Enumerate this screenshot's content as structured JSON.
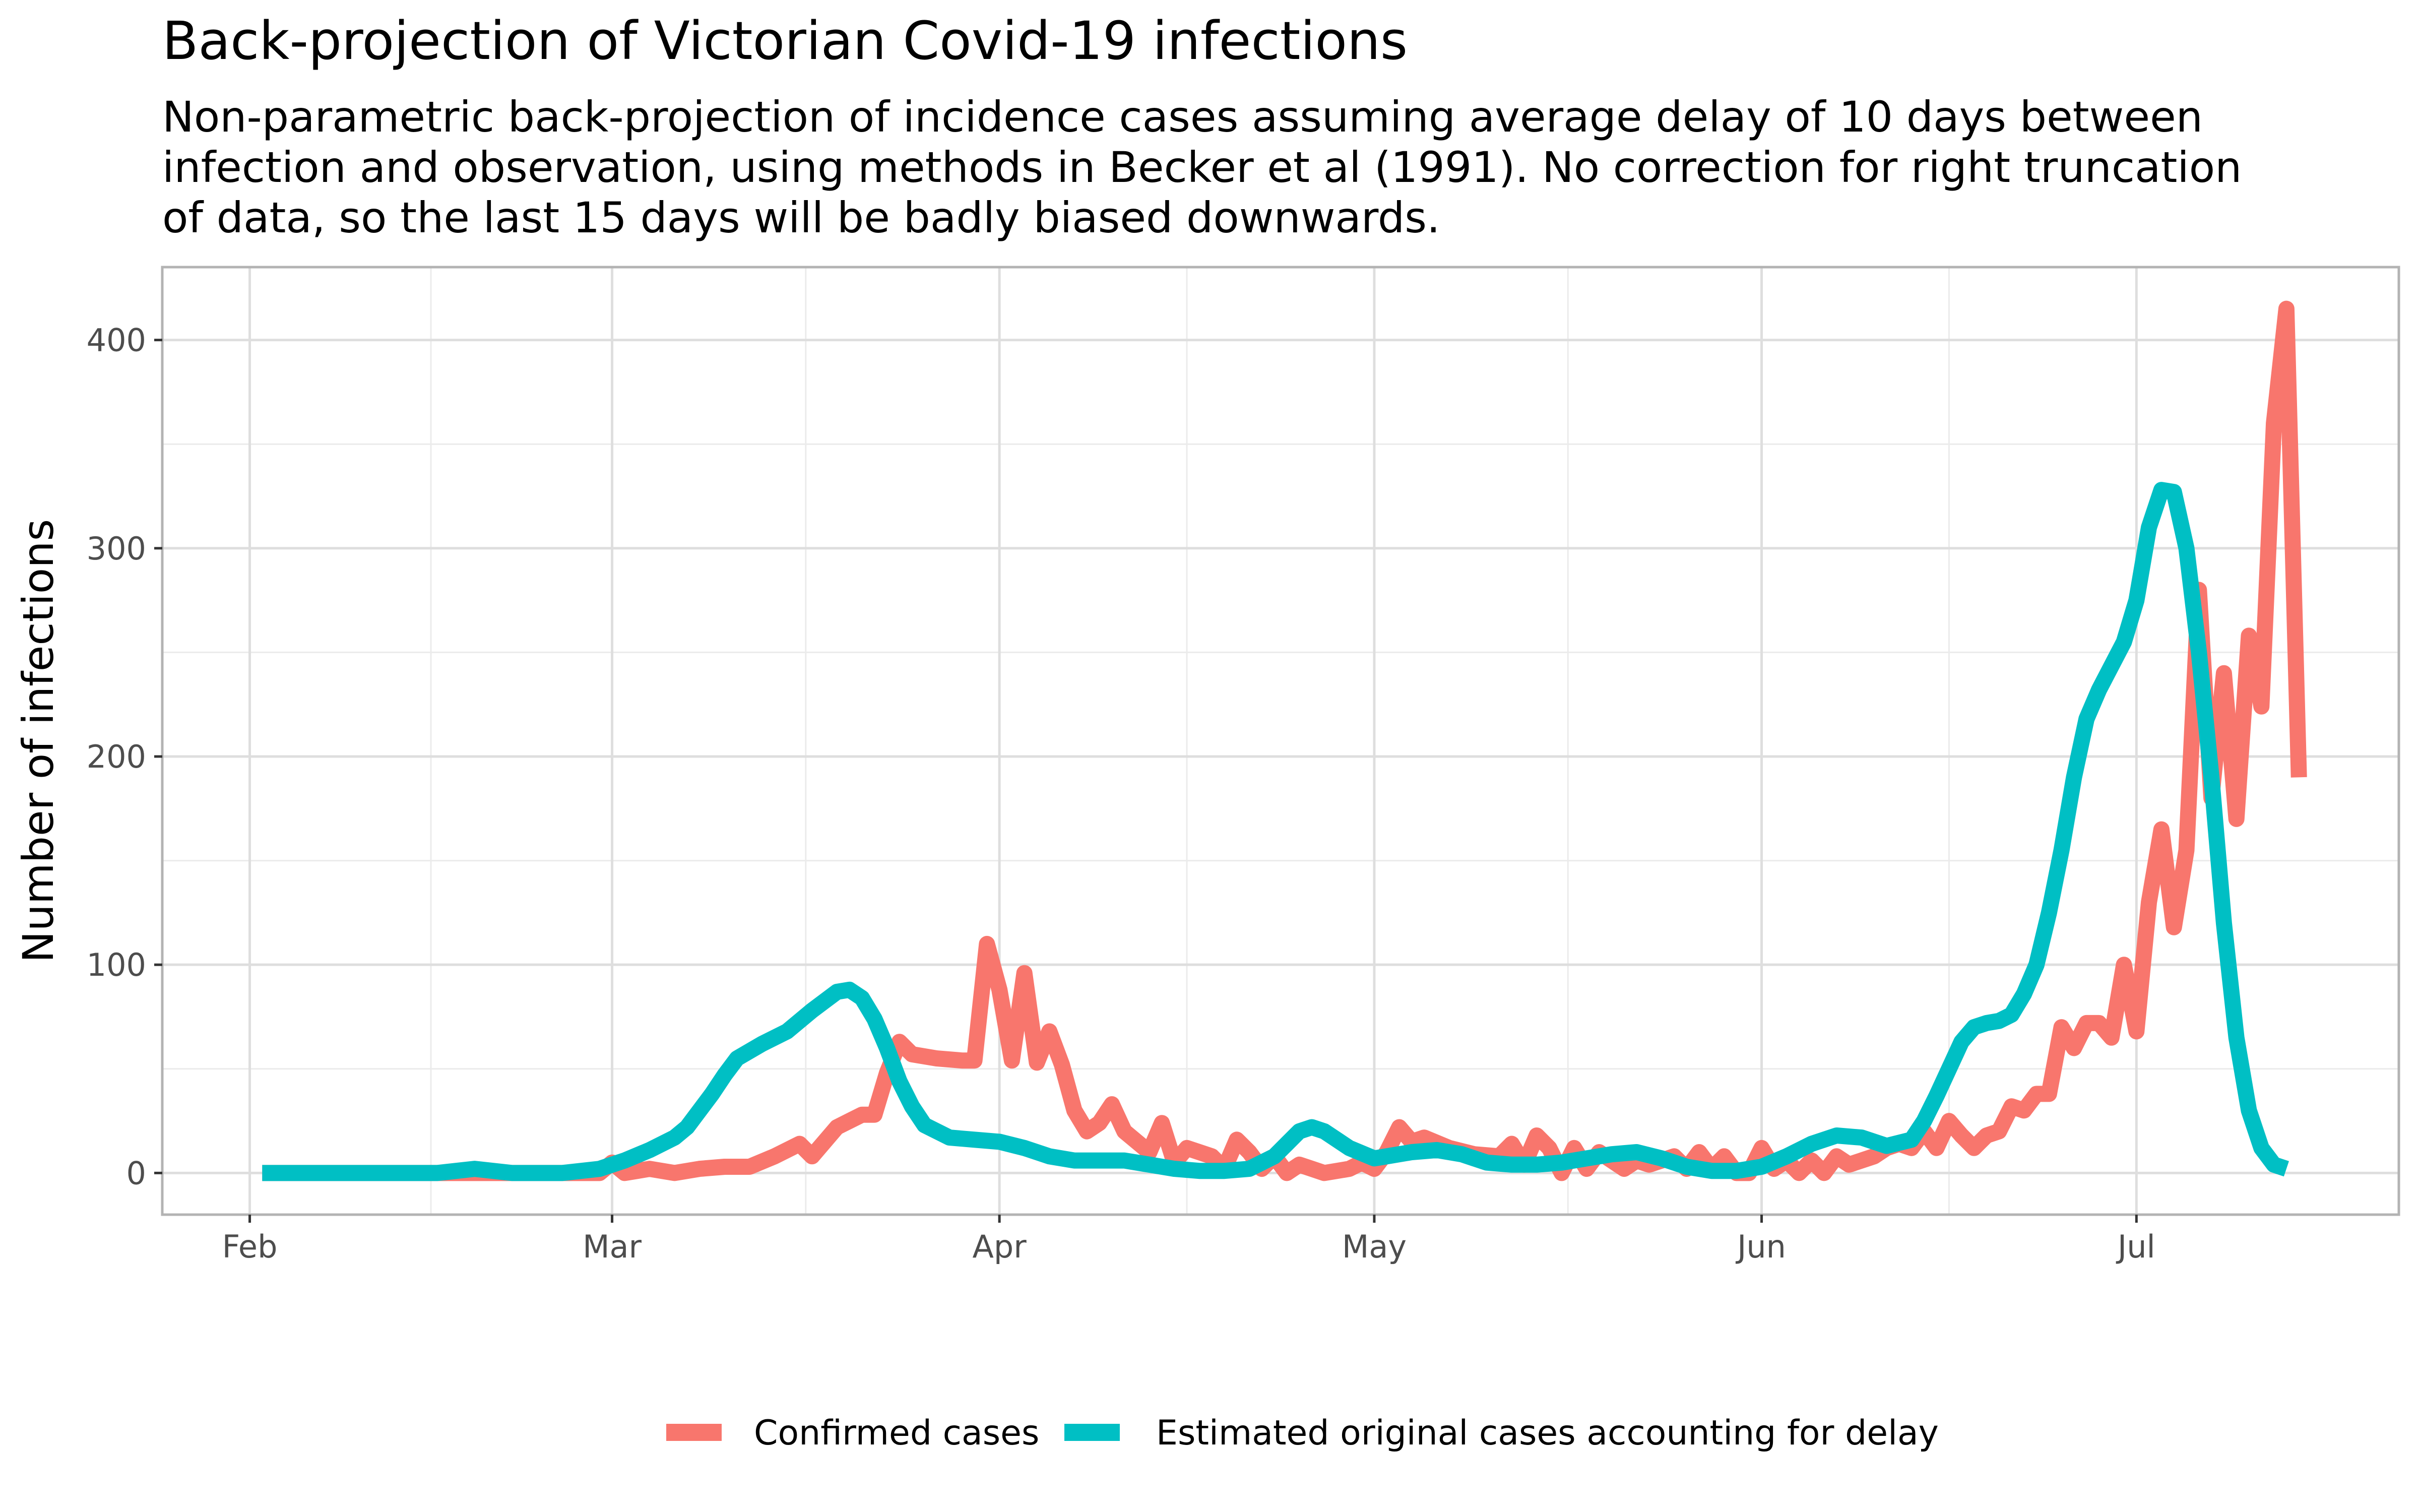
{
  "chart_data": {
    "type": "line",
    "title": "Back-projection of Victorian Covid-19 infections",
    "subtitle_lines": [
      "Non-parametric back-projection of incidence cases assuming average delay of 10 days between",
      "infection and observation, using methods in Becker et al (1991). No correction for right truncation",
      "of data, so the last 15 days will be badly biased downwards."
    ],
    "xlabel": "",
    "ylabel": "Number of infections",
    "x_ticks": [
      {
        "label": "Feb",
        "day": 0
      },
      {
        "label": "Mar",
        "day": 29
      },
      {
        "label": "Apr",
        "day": 60
      },
      {
        "label": "May",
        "day": 90
      },
      {
        "label": "Jun",
        "day": 121
      },
      {
        "label": "Jul",
        "day": 151
      }
    ],
    "x_note": "x values are days since 1 Feb 2020",
    "xlim": [
      -7,
      172
    ],
    "y_ticks": [
      0,
      100,
      200,
      300,
      400
    ],
    "ylim": [
      -20,
      435
    ],
    "grid": true,
    "legend_position": "bottom",
    "series": [
      {
        "name": "Confirmed cases",
        "color": "#F8766D",
        "points": [
          [
            1,
            0
          ],
          [
            5,
            0
          ],
          [
            10,
            0
          ],
          [
            15,
            0
          ],
          [
            20,
            0
          ],
          [
            24,
            0
          ],
          [
            28,
            0
          ],
          [
            29,
            5
          ],
          [
            30,
            0
          ],
          [
            32,
            2
          ],
          [
            34,
            0
          ],
          [
            36,
            2
          ],
          [
            38,
            3
          ],
          [
            40,
            3
          ],
          [
            42,
            8
          ],
          [
            44,
            14
          ],
          [
            45,
            8
          ],
          [
            47,
            22
          ],
          [
            48,
            25
          ],
          [
            49,
            28
          ],
          [
            50,
            28
          ],
          [
            51,
            48
          ],
          [
            52,
            63
          ],
          [
            53,
            57
          ],
          [
            55,
            55
          ],
          [
            57,
            54
          ],
          [
            58,
            54
          ],
          [
            59,
            110
          ],
          [
            60,
            88
          ],
          [
            61,
            54
          ],
          [
            62,
            96
          ],
          [
            63,
            53
          ],
          [
            64,
            68
          ],
          [
            65,
            52
          ],
          [
            66,
            30
          ],
          [
            67,
            20
          ],
          [
            68,
            24
          ],
          [
            69,
            33
          ],
          [
            70,
            20
          ],
          [
            71,
            15
          ],
          [
            72,
            10
          ],
          [
            73,
            24
          ],
          [
            74,
            5
          ],
          [
            75,
            12
          ],
          [
            77,
            8
          ],
          [
            78,
            2
          ],
          [
            79,
            16
          ],
          [
            80,
            10
          ],
          [
            81,
            2
          ],
          [
            82,
            8
          ],
          [
            83,
            0
          ],
          [
            84,
            4
          ],
          [
            85,
            2
          ],
          [
            86,
            0
          ],
          [
            88,
            2
          ],
          [
            89,
            5
          ],
          [
            90,
            2
          ],
          [
            91,
            10
          ],
          [
            92,
            22
          ],
          [
            93,
            15
          ],
          [
            94,
            17
          ],
          [
            96,
            12
          ],
          [
            98,
            9
          ],
          [
            100,
            8
          ],
          [
            101,
            14
          ],
          [
            102,
            4
          ],
          [
            103,
            18
          ],
          [
            104,
            12
          ],
          [
            105,
            0
          ],
          [
            106,
            12
          ],
          [
            107,
            2
          ],
          [
            108,
            10
          ],
          [
            110,
            2
          ],
          [
            111,
            6
          ],
          [
            112,
            4
          ],
          [
            114,
            8
          ],
          [
            115,
            2
          ],
          [
            116,
            10
          ],
          [
            117,
            2
          ],
          [
            118,
            8
          ],
          [
            119,
            0
          ],
          [
            120,
            0
          ],
          [
            121,
            12
          ],
          [
            122,
            2
          ],
          [
            123,
            6
          ],
          [
            124,
            0
          ],
          [
            125,
            6
          ],
          [
            126,
            0
          ],
          [
            127,
            8
          ],
          [
            128,
            4
          ],
          [
            130,
            8
          ],
          [
            131,
            12
          ],
          [
            132,
            14
          ],
          [
            133,
            12
          ],
          [
            134,
            20
          ],
          [
            135,
            12
          ],
          [
            136,
            25
          ],
          [
            137,
            18
          ],
          [
            138,
            12
          ],
          [
            139,
            18
          ],
          [
            140,
            20
          ],
          [
            141,
            32
          ],
          [
            142,
            30
          ],
          [
            143,
            38
          ],
          [
            144,
            38
          ],
          [
            145,
            70
          ],
          [
            146,
            60
          ],
          [
            147,
            72
          ],
          [
            148,
            72
          ],
          [
            149,
            65
          ],
          [
            150,
            100
          ],
          [
            151,
            68
          ],
          [
            152,
            130
          ],
          [
            153,
            165
          ],
          [
            154,
            118
          ],
          [
            155,
            155
          ],
          [
            156,
            280
          ],
          [
            157,
            180
          ],
          [
            158,
            240
          ],
          [
            159,
            170
          ],
          [
            160,
            258
          ],
          [
            161,
            224
          ],
          [
            162,
            360
          ],
          [
            163,
            415
          ],
          [
            164,
            190
          ]
        ]
      },
      {
        "name": "Estimated original cases accounting for delay",
        "color": "#00BFC4",
        "points": [
          [
            1,
            0
          ],
          [
            10,
            0
          ],
          [
            15,
            0
          ],
          [
            18,
            2
          ],
          [
            21,
            0
          ],
          [
            25,
            0
          ],
          [
            28,
            2
          ],
          [
            30,
            6
          ],
          [
            32,
            11
          ],
          [
            34,
            17
          ],
          [
            35,
            22
          ],
          [
            37,
            38
          ],
          [
            38,
            47
          ],
          [
            39,
            55
          ],
          [
            41,
            62
          ],
          [
            43,
            68
          ],
          [
            45,
            78
          ],
          [
            47,
            87
          ],
          [
            48,
            88
          ],
          [
            49,
            84
          ],
          [
            50,
            74
          ],
          [
            51,
            60
          ],
          [
            52,
            44
          ],
          [
            53,
            32
          ],
          [
            54,
            23
          ],
          [
            56,
            17
          ],
          [
            58,
            16
          ],
          [
            60,
            15
          ],
          [
            62,
            12
          ],
          [
            64,
            8
          ],
          [
            66,
            6
          ],
          [
            68,
            6
          ],
          [
            70,
            6
          ],
          [
            72,
            4
          ],
          [
            74,
            2
          ],
          [
            76,
            1
          ],
          [
            78,
            1
          ],
          [
            80,
            2
          ],
          [
            82,
            8
          ],
          [
            83,
            14
          ],
          [
            84,
            20
          ],
          [
            85,
            22
          ],
          [
            86,
            20
          ],
          [
            88,
            12
          ],
          [
            90,
            7
          ],
          [
            91,
            8
          ],
          [
            93,
            10
          ],
          [
            95,
            11
          ],
          [
            97,
            9
          ],
          [
            99,
            5
          ],
          [
            101,
            4
          ],
          [
            103,
            4
          ],
          [
            105,
            5
          ],
          [
            107,
            7
          ],
          [
            109,
            9
          ],
          [
            111,
            10
          ],
          [
            113,
            7
          ],
          [
            115,
            3
          ],
          [
            117,
            1
          ],
          [
            119,
            1
          ],
          [
            121,
            3
          ],
          [
            123,
            8
          ],
          [
            125,
            14
          ],
          [
            127,
            18
          ],
          [
            129,
            17
          ],
          [
            131,
            13
          ],
          [
            133,
            16
          ],
          [
            134,
            25
          ],
          [
            135,
            37
          ],
          [
            136,
            50
          ],
          [
            137,
            63
          ],
          [
            138,
            70
          ],
          [
            139,
            72
          ],
          [
            140,
            73
          ],
          [
            141,
            76
          ],
          [
            142,
            86
          ],
          [
            143,
            100
          ],
          [
            144,
            125
          ],
          [
            145,
            155
          ],
          [
            146,
            190
          ],
          [
            147,
            218
          ],
          [
            148,
            232
          ],
          [
            150,
            255
          ],
          [
            151,
            275
          ],
          [
            152,
            310
          ],
          [
            153,
            328
          ],
          [
            154,
            327
          ],
          [
            155,
            300
          ],
          [
            156,
            250
          ],
          [
            157,
            190
          ],
          [
            158,
            120
          ],
          [
            159,
            65
          ],
          [
            160,
            30
          ],
          [
            161,
            12
          ],
          [
            162,
            4
          ],
          [
            163,
            2
          ]
        ]
      }
    ]
  }
}
